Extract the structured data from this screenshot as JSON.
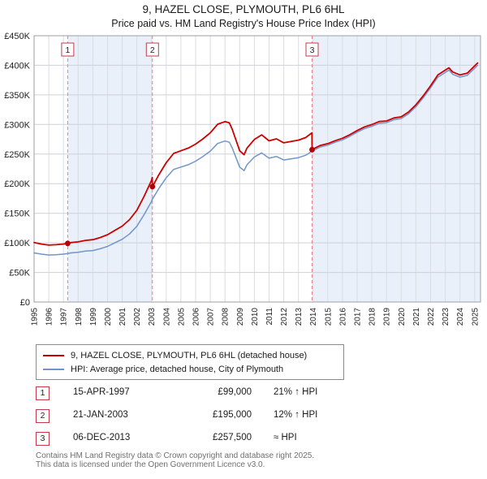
{
  "title": {
    "line1": "9, HAZEL CLOSE, PLYMOUTH, PL6 6HL",
    "line2": "Price paid vs. HM Land Registry's House Price Index (HPI)"
  },
  "chart_data": {
    "type": "line",
    "x_range": [
      1995,
      2025.4
    ],
    "y_range": [
      0,
      450
    ],
    "y_unit": "GBP thousands",
    "grid": true,
    "legend_position": "bottom",
    "x_ticks": [
      1995,
      1996,
      1997,
      1998,
      1999,
      2000,
      2001,
      2002,
      2003,
      2004,
      2005,
      2006,
      2007,
      2008,
      2009,
      2010,
      2011,
      2012,
      2013,
      2014,
      2015,
      2016,
      2017,
      2018,
      2019,
      2020,
      2021,
      2022,
      2023,
      2024,
      2025
    ],
    "y_ticks": [
      0,
      50,
      100,
      150,
      200,
      250,
      300,
      350,
      400,
      450
    ],
    "y_tick_labels": [
      "£0",
      "£50K",
      "£100K",
      "£150K",
      "£200K",
      "£250K",
      "£300K",
      "£350K",
      "£400K",
      "£450K"
    ],
    "band_color": "#e9f0fa",
    "bands": [
      [
        1997.29,
        2003.06
      ],
      [
        2013.93,
        2025.4
      ]
    ],
    "sale_line_color": "#e6808e",
    "series": [
      {
        "name": "9, HAZEL CLOSE, PLYMOUTH, PL6 6HL (detached house)",
        "color": "#cc0000",
        "width": 1.8,
        "points": [
          [
            1995,
            100.4
          ],
          [
            1995.5,
            98
          ],
          [
            1996,
            96.2
          ],
          [
            1996.5,
            96.8
          ],
          [
            1997,
            98
          ],
          [
            1997.29,
            99
          ],
          [
            1997.5,
            100.4
          ],
          [
            1998,
            101.6
          ],
          [
            1998.5,
            104.1
          ],
          [
            1999,
            105.3
          ],
          [
            1999.5,
            108.9
          ],
          [
            2000,
            113.7
          ],
          [
            2000.5,
            121
          ],
          [
            2001,
            128.3
          ],
          [
            2001.5,
            139.2
          ],
          [
            2002,
            154.9
          ],
          [
            2002.5,
            179.1
          ],
          [
            2003,
            205.7
          ],
          [
            2003.05,
            210.5
          ],
          [
            2003.06,
            195
          ],
          [
            2003.5,
            215.2
          ],
          [
            2004,
            235.4
          ],
          [
            2004.5,
            251.1
          ],
          [
            2005,
            255.6
          ],
          [
            2005.5,
            260.1
          ],
          [
            2006,
            266.8
          ],
          [
            2006.5,
            275.8
          ],
          [
            2007,
            285.9
          ],
          [
            2007.5,
            300.4
          ],
          [
            2008,
            304.9
          ],
          [
            2008.3,
            302.7
          ],
          [
            2008.5,
            291.5
          ],
          [
            2009,
            255.6
          ],
          [
            2009.3,
            248.9
          ],
          [
            2009.5,
            260.1
          ],
          [
            2010,
            274.6
          ],
          [
            2010.5,
            282.5
          ],
          [
            2011,
            272.4
          ],
          [
            2011.5,
            275.8
          ],
          [
            2012,
            269
          ],
          [
            2012.5,
            271.3
          ],
          [
            2013,
            273.5
          ],
          [
            2013.5,
            278
          ],
          [
            2013.92,
            285.9
          ],
          [
            2013.93,
            257.5
          ],
          [
            2014,
            258.5
          ],
          [
            2014.5,
            264.6
          ],
          [
            2015,
            267.6
          ],
          [
            2015.5,
            272.6
          ],
          [
            2016,
            276.7
          ],
          [
            2016.5,
            282.7
          ],
          [
            2017,
            289.8
          ],
          [
            2017.5,
            295.9
          ],
          [
            2018,
            299.9
          ],
          [
            2018.5,
            305
          ],
          [
            2019,
            305.9
          ],
          [
            2019.5,
            311
          ],
          [
            2020,
            313
          ],
          [
            2020.5,
            321.1
          ],
          [
            2021,
            333.2
          ],
          [
            2021.5,
            348.4
          ],
          [
            2022,
            365.5
          ],
          [
            2022.5,
            383.7
          ],
          [
            2023,
            391.8
          ],
          [
            2023.25,
            395.8
          ],
          [
            2023.5,
            388.8
          ],
          [
            2024,
            383.7
          ],
          [
            2024.5,
            386.7
          ],
          [
            2025,
            399
          ],
          [
            2025.2,
            403.9
          ]
        ]
      },
      {
        "name": "HPI: Average price, detached house, City of Plymouth",
        "color": "#7096c8",
        "width": 1.5,
        "points": [
          [
            1995,
            83
          ],
          [
            1995.5,
            81
          ],
          [
            1996,
            79.5
          ],
          [
            1996.5,
            80
          ],
          [
            1997,
            81
          ],
          [
            1997.29,
            81.8
          ],
          [
            1997.5,
            83
          ],
          [
            1998,
            84
          ],
          [
            1998.5,
            86
          ],
          [
            1999,
            87
          ],
          [
            1999.5,
            90
          ],
          [
            2000,
            94
          ],
          [
            2000.5,
            100
          ],
          [
            2001,
            106
          ],
          [
            2001.5,
            115
          ],
          [
            2002,
            128
          ],
          [
            2002.5,
            148
          ],
          [
            2003,
            170
          ],
          [
            2003.06,
            174
          ],
          [
            2003.5,
            192
          ],
          [
            2004,
            210
          ],
          [
            2004.5,
            224
          ],
          [
            2005,
            228
          ],
          [
            2005.5,
            232
          ],
          [
            2006,
            238
          ],
          [
            2006.5,
            246
          ],
          [
            2007,
            255
          ],
          [
            2007.5,
            268
          ],
          [
            2008,
            272
          ],
          [
            2008.3,
            270
          ],
          [
            2008.5,
            260
          ],
          [
            2009,
            228
          ],
          [
            2009.3,
            222
          ],
          [
            2009.5,
            232
          ],
          [
            2010,
            245
          ],
          [
            2010.5,
            252
          ],
          [
            2011,
            243
          ],
          [
            2011.5,
            246
          ],
          [
            2012,
            240
          ],
          [
            2012.5,
            242
          ],
          [
            2013,
            244
          ],
          [
            2013.5,
            248
          ],
          [
            2013.93,
            255
          ],
          [
            2014,
            256
          ],
          [
            2014.5,
            262
          ],
          [
            2015,
            265
          ],
          [
            2015.5,
            270
          ],
          [
            2016,
            274
          ],
          [
            2016.5,
            280
          ],
          [
            2017,
            287
          ],
          [
            2017.5,
            293
          ],
          [
            2018,
            297
          ],
          [
            2018.5,
            302
          ],
          [
            2019,
            303
          ],
          [
            2019.5,
            308
          ],
          [
            2020,
            310
          ],
          [
            2020.5,
            318
          ],
          [
            2021,
            330
          ],
          [
            2021.5,
            345
          ],
          [
            2022,
            362
          ],
          [
            2022.5,
            380
          ],
          [
            2023,
            388
          ],
          [
            2023.25,
            392
          ],
          [
            2023.5,
            385
          ],
          [
            2024,
            380
          ],
          [
            2024.5,
            383
          ],
          [
            2025,
            395
          ],
          [
            2025.2,
            400
          ]
        ]
      }
    ],
    "sales": [
      {
        "label": "1",
        "x": 1997.29,
        "y": 99
      },
      {
        "label": "2",
        "x": 2003.06,
        "y": 195
      },
      {
        "label": "3",
        "x": 2013.93,
        "y": 257.5
      }
    ]
  },
  "transactions": [
    {
      "n": "1",
      "date": "15-APR-1997",
      "price": "£99,000",
      "hpi": "21% ↑ HPI"
    },
    {
      "n": "2",
      "date": "21-JAN-2003",
      "price": "£195,000",
      "hpi": "12% ↑ HPI"
    },
    {
      "n": "3",
      "date": "06-DEC-2013",
      "price": "£257,500",
      "hpi": "≈ HPI"
    }
  ],
  "footer": {
    "line1": "Contains HM Land Registry data © Crown copyright and database right 2025.",
    "line2": "This data is licensed under the Open Government Licence v3.0."
  }
}
